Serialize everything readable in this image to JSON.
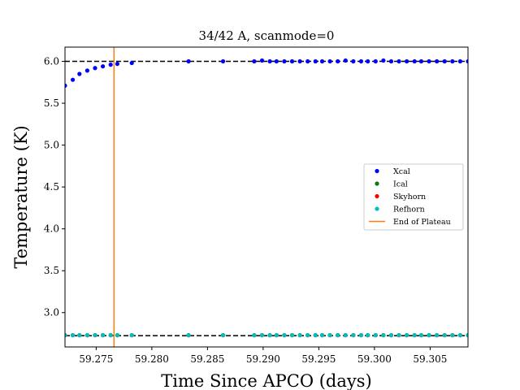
{
  "chart_data": {
    "type": "scatter",
    "title": "34/42 A, scanmode=0",
    "xlabel": "Time Since APCO (days)",
    "ylabel": "Temperature (K)",
    "xlim": [
      59.2722,
      59.3084
    ],
    "ylim": [
      2.59,
      6.17
    ],
    "x_ticks": [
      59.275,
      59.28,
      59.285,
      59.29,
      59.295,
      59.3,
      59.305
    ],
    "x_tick_labels": [
      "59.275",
      "59.280",
      "59.285",
      "59.290",
      "59.295",
      "59.300",
      "59.305"
    ],
    "y_ticks": [
      3.0,
      3.5,
      4.0,
      4.5,
      5.0,
      5.5,
      6.0
    ],
    "y_tick_labels": [
      "3.0",
      "3.5",
      "4.0",
      "4.5",
      "5.0",
      "5.5",
      "6.0"
    ],
    "grid": false,
    "legend_position": "center-right",
    "reference_lines": [
      {
        "orientation": "horizontal",
        "y": 6.0,
        "style": "dashed",
        "color": "#000000"
      },
      {
        "orientation": "horizontal",
        "y": 2.725,
        "style": "dashed",
        "color": "#000000"
      }
    ],
    "series": [
      {
        "name": "Xcal",
        "color": "#0000ff",
        "marker": "dot",
        "x": [
          59.2722,
          59.2729,
          59.2735,
          59.2742,
          59.2749,
          59.2756,
          59.2763,
          59.2769,
          59.2782,
          59.2833,
          59.2864,
          59.2892,
          59.2899,
          59.2906,
          59.2912,
          59.2919,
          59.2926,
          59.2933,
          59.294,
          59.2947,
          59.2953,
          59.296,
          59.2967,
          59.2974,
          59.2981,
          59.2988,
          59.2994,
          59.3001,
          59.3008,
          59.3015,
          59.3022,
          59.3029,
          59.3036,
          59.3042,
          59.3049,
          59.3056,
          59.3063,
          59.307,
          59.3077,
          59.3084
        ],
        "y": [
          5.71,
          5.78,
          5.85,
          5.89,
          5.92,
          5.94,
          5.96,
          5.97,
          5.98,
          6.0,
          6.0,
          6.0,
          6.01,
          6.0,
          6.0,
          6.0,
          6.0,
          6.0,
          6.0,
          6.0,
          6.0,
          6.0,
          6.0,
          6.01,
          6.0,
          6.0,
          6.0,
          6.0,
          6.01,
          6.0,
          6.0,
          6.0,
          6.0,
          6.0,
          6.0,
          6.0,
          6.0,
          6.0,
          6.0,
          6.0
        ]
      },
      {
        "name": "Ical",
        "color": "#008000",
        "marker": "dot",
        "x": [
          59.2722,
          59.2729,
          59.2735,
          59.2742,
          59.2749,
          59.2756,
          59.2763,
          59.2769,
          59.2782,
          59.2833,
          59.2864,
          59.2892,
          59.2899,
          59.2906,
          59.2912,
          59.2919,
          59.2926,
          59.2933,
          59.294,
          59.2947,
          59.2953,
          59.296,
          59.2967,
          59.2974,
          59.2981,
          59.2988,
          59.2994,
          59.3001,
          59.3008,
          59.3015,
          59.3022,
          59.3029,
          59.3036,
          59.3042,
          59.3049,
          59.3056,
          59.3063,
          59.307,
          59.3077,
          59.3084
        ],
        "y": [
          2.73,
          2.73,
          2.73,
          2.73,
          2.73,
          2.73,
          2.73,
          2.73,
          2.73,
          2.73,
          2.73,
          2.73,
          2.73,
          2.73,
          2.73,
          2.73,
          2.73,
          2.73,
          2.73,
          2.73,
          2.73,
          2.73,
          2.73,
          2.73,
          2.73,
          2.73,
          2.73,
          2.73,
          2.73,
          2.73,
          2.73,
          2.73,
          2.73,
          2.73,
          2.73,
          2.73,
          2.73,
          2.73,
          2.73,
          2.73
        ]
      },
      {
        "name": "Skyhorn",
        "color": "#ff0000",
        "marker": "dot",
        "x": [
          59.2722,
          59.2729,
          59.2735,
          59.2742,
          59.2749,
          59.2756,
          59.2763,
          59.2769,
          59.2782,
          59.2833,
          59.2864,
          59.2892,
          59.2899,
          59.2906,
          59.2912,
          59.2919,
          59.2926,
          59.2933,
          59.294,
          59.2947,
          59.2953,
          59.296,
          59.2967,
          59.2974,
          59.2981,
          59.2988,
          59.2994,
          59.3001,
          59.3008,
          59.3015,
          59.3022,
          59.3029,
          59.3036,
          59.3042,
          59.3049,
          59.3056,
          59.3063,
          59.307,
          59.3077,
          59.3084
        ],
        "y": [
          2.73,
          2.73,
          2.73,
          2.73,
          2.73,
          2.73,
          2.73,
          2.73,
          2.73,
          2.73,
          2.73,
          2.73,
          2.73,
          2.73,
          2.73,
          2.73,
          2.73,
          2.73,
          2.73,
          2.73,
          2.73,
          2.73,
          2.73,
          2.73,
          2.73,
          2.73,
          2.73,
          2.73,
          2.73,
          2.73,
          2.73,
          2.73,
          2.73,
          2.73,
          2.73,
          2.73,
          2.73,
          2.73,
          2.73,
          2.73
        ]
      },
      {
        "name": "Refhorn",
        "color": "#00bfbf",
        "marker": "dot",
        "x": [
          59.2722,
          59.2729,
          59.2735,
          59.2742,
          59.2749,
          59.2756,
          59.2763,
          59.2769,
          59.2782,
          59.2833,
          59.2864,
          59.2892,
          59.2899,
          59.2906,
          59.2912,
          59.2919,
          59.2926,
          59.2933,
          59.294,
          59.2947,
          59.2953,
          59.296,
          59.2967,
          59.2974,
          59.2981,
          59.2988,
          59.2994,
          59.3001,
          59.3008,
          59.3015,
          59.3022,
          59.3029,
          59.3036,
          59.3042,
          59.3049,
          59.3056,
          59.3063,
          59.307,
          59.3077,
          59.3084
        ],
        "y": [
          2.73,
          2.73,
          2.73,
          2.73,
          2.73,
          2.73,
          2.73,
          2.73,
          2.73,
          2.73,
          2.73,
          2.73,
          2.73,
          2.73,
          2.73,
          2.73,
          2.73,
          2.73,
          2.73,
          2.73,
          2.73,
          2.73,
          2.73,
          2.73,
          2.73,
          2.73,
          2.73,
          2.73,
          2.73,
          2.73,
          2.73,
          2.73,
          2.73,
          2.73,
          2.73,
          2.73,
          2.73,
          2.73,
          2.73,
          2.73
        ]
      },
      {
        "name": "End of Plateau",
        "color": "#ff7f0e",
        "marker": "vertical-line",
        "x_value": 59.2766
      }
    ]
  }
}
